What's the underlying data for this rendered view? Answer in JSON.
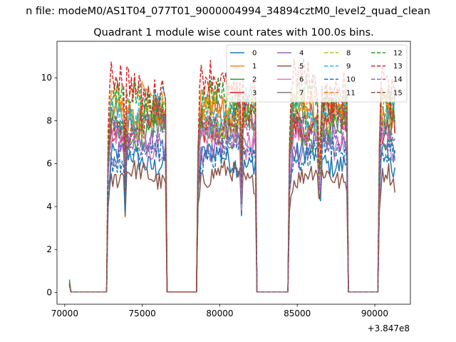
{
  "figure": {
    "suptitle": "n file: modeM0/AS1T04_077T01_9000004994_34894cztM0_level2_quad_clean",
    "title": "Quadrant 1 module wise count rates with 100.0s bins."
  },
  "chart_data": {
    "type": "line",
    "title": "Quadrant 1 module wise count rates with 100.0s bins.",
    "xlabel": "",
    "ylabel": "",
    "x_offset_label": "+3.847e8",
    "xlim": [
      69500,
      92300
    ],
    "ylim": [
      -0.55,
      11.7
    ],
    "x_ticks": [
      70000,
      75000,
      80000,
      85000,
      90000
    ],
    "x_tick_labels": [
      "70000",
      "75000",
      "80000",
      "85000",
      "90000"
    ],
    "y_ticks": [
      0,
      2,
      4,
      6,
      8,
      10
    ],
    "y_tick_labels": [
      "0",
      "2",
      "4",
      "6",
      "8",
      "10"
    ],
    "grid": false,
    "legend": {
      "placement": "upper right",
      "columns": 4
    },
    "segments": [
      {
        "start": 70300,
        "end": 72700,
        "level": "off"
      },
      {
        "start": 72800,
        "end": 76500,
        "level": "on"
      },
      {
        "start": 76600,
        "end": 78500,
        "level": "off"
      },
      {
        "start": 78600,
        "end": 82300,
        "level": "on"
      },
      {
        "start": 82400,
        "end": 84400,
        "level": "off"
      },
      {
        "start": 84500,
        "end": 88200,
        "level": "on"
      },
      {
        "start": 88300,
        "end": 90200,
        "level": "off"
      },
      {
        "start": 90300,
        "end": 91300,
        "level": "on"
      }
    ],
    "series": [
      {
        "name": "0",
        "color": "#1f77b4",
        "dash": "solid",
        "level": 6.2,
        "start_value": 0.5
      },
      {
        "name": "1",
        "color": "#ff7f0e",
        "dash": "solid",
        "level": 8.6,
        "start_value": 0.4
      },
      {
        "name": "2",
        "color": "#2ca02c",
        "dash": "solid",
        "level": 7.6,
        "start_value": 0.6
      },
      {
        "name": "3",
        "color": "#d62728",
        "dash": "solid",
        "level": 7.9,
        "start_value": 0.4
      },
      {
        "name": "4",
        "color": "#9467bd",
        "dash": "solid",
        "level": 6.8,
        "start_value": 0.4
      },
      {
        "name": "5",
        "color": "#8c564b",
        "dash": "solid",
        "level": 5.4,
        "start_value": 0.3
      },
      {
        "name": "6",
        "color": "#e377c2",
        "dash": "solid",
        "level": 7.2,
        "start_value": 0.4
      },
      {
        "name": "7",
        "color": "#7f7f7f",
        "dash": "solid",
        "level": 8.1,
        "start_value": 0.4
      },
      {
        "name": "8",
        "color": "#bcbd22",
        "dash": "dashed",
        "level": 8.3,
        "start_value": 0.4
      },
      {
        "name": "9",
        "color": "#17becf",
        "dash": "dashed",
        "level": 8.5,
        "start_value": 0.4
      },
      {
        "name": "10",
        "color": "#1f77b4",
        "dash": "dashed",
        "level": 6.5,
        "start_value": 0.4
      },
      {
        "name": "11",
        "color": "#ff7f0e",
        "dash": "dashed",
        "level": 8.7,
        "start_value": 0.4
      },
      {
        "name": "12",
        "color": "#2ca02c",
        "dash": "dashed",
        "level": 8.9,
        "start_value": 0.4
      },
      {
        "name": "13",
        "color": "#d62728",
        "dash": "dashed",
        "level": 9.6,
        "start_value": 0.4
      },
      {
        "name": "14",
        "color": "#9467bd",
        "dash": "dashed",
        "level": 7.4,
        "start_value": 0.4
      },
      {
        "name": "15",
        "color": "#8c564b",
        "dash": "dashed",
        "level": 8.0,
        "start_value": 0.4
      }
    ]
  }
}
